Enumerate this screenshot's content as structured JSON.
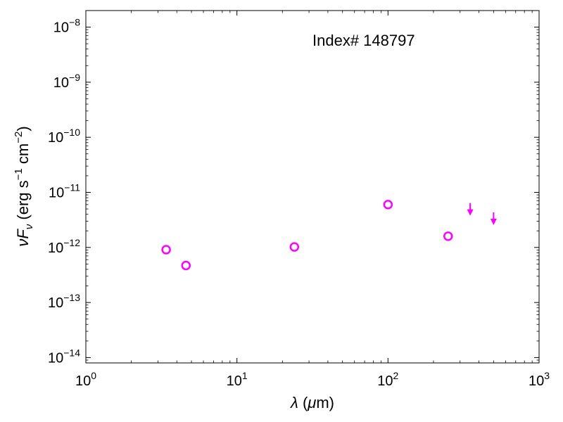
{
  "chart_data": {
    "type": "scatter",
    "xscale": "log",
    "yscale": "log",
    "xlim": [
      1,
      1000
    ],
    "ylim": [
      8e-15,
      2e-08
    ],
    "grid": false,
    "annotation": "Index# 148797",
    "xlabel": "λ (μm)",
    "ylabel": "νF_ν (erg s⁻¹ cm⁻²)",
    "x_ticks": [
      {
        "value": 1,
        "base": "10",
        "exp": "0"
      },
      {
        "value": 10,
        "base": "10",
        "exp": "1"
      },
      {
        "value": 100,
        "base": "10",
        "exp": "2"
      },
      {
        "value": 1000,
        "base": "10",
        "exp": "3"
      }
    ],
    "y_ticks": [
      {
        "value": 1e-14,
        "base": "10",
        "exp": "−14"
      },
      {
        "value": 1e-13,
        "base": "10",
        "exp": "−13"
      },
      {
        "value": 1e-12,
        "base": "10",
        "exp": "−12"
      },
      {
        "value": 1e-11,
        "base": "10",
        "exp": "−11"
      },
      {
        "value": 1e-10,
        "base": "10",
        "exp": "−10"
      },
      {
        "value": 1e-09,
        "base": "10",
        "exp": "−9"
      },
      {
        "value": 1e-08,
        "base": "10",
        "exp": "−8"
      }
    ],
    "color": "#ff00ff",
    "points": [
      {
        "x": 3.4,
        "y": 9.1e-13
      },
      {
        "x": 4.6,
        "y": 4.7e-13
      },
      {
        "x": 24,
        "y": 1.02e-12
      },
      {
        "x": 100,
        "y": 6e-12
      },
      {
        "x": 250,
        "y": 1.6e-12
      }
    ],
    "upper_limits": [
      {
        "x": 350,
        "y": 4e-12
      },
      {
        "x": 500,
        "y": 2.7e-12
      }
    ]
  }
}
